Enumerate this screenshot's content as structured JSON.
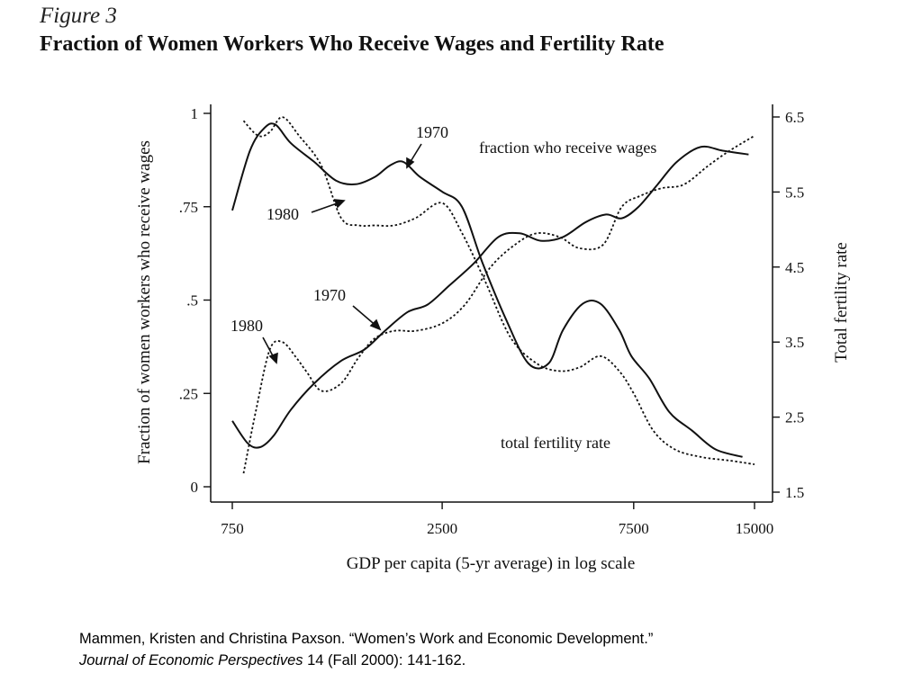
{
  "figure": {
    "label": "Figure 3",
    "title": "Fraction of Women Workers Who Receive Wages and Fertility Rate"
  },
  "citation": {
    "line1": "Mammen, Kristen and Christina Paxson.  “Women’s Work and Economic Development.”",
    "journal": "Journal of Economic Perspectives",
    "line2_rest": " 14 (Fall 2000): 141-162."
  },
  "chart_data": {
    "type": "line",
    "title": "Fraction of Women Workers Who Receive Wages and Fertility Rate",
    "xlabel": "GDP per capita (5-yr average) in log scale",
    "ylabel_left": "Fraction of women workers who receive wages",
    "ylabel_right": "Total fertility rate",
    "x_scale": "log",
    "x_ticks": [
      750,
      2500,
      7500,
      15000
    ],
    "x_tick_labels": [
      "750",
      "2500",
      "7500",
      "15000"
    ],
    "y_left_ticks": [
      0,
      0.25,
      0.5,
      0.75,
      1
    ],
    "y_left_tick_labels": [
      "0",
      ".25",
      ".5",
      ".75",
      "1"
    ],
    "y_right_ticks": [
      1.5,
      2.5,
      3.5,
      4.5,
      5.5,
      6.5
    ],
    "y_right_tick_labels": [
      "1.5",
      "2.5",
      "3.5",
      "4.5",
      "5.5",
      "6.5"
    ],
    "grid": false,
    "annotations": [
      "1970",
      "1980",
      "fraction who receive wages",
      "1970",
      "1980",
      "total fertility rate"
    ],
    "series": [
      {
        "name": "fraction who receive wages, 1970",
        "axis": "left",
        "style": "solid",
        "x": [
          750,
          830,
          900,
          960,
          1050,
          1200,
          1360,
          1520,
          1700,
          1850,
          2000,
          2200,
          2500,
          2800,
          3150,
          3600,
          4100,
          4600,
          5000,
          5600,
          6200,
          6900,
          7400,
          8200,
          9200,
          10500,
          12000,
          14000
        ],
        "y": [
          0.74,
          0.9,
          0.96,
          0.97,
          0.92,
          0.87,
          0.82,
          0.81,
          0.83,
          0.86,
          0.87,
          0.83,
          0.79,
          0.75,
          0.6,
          0.45,
          0.33,
          0.33,
          0.42,
          0.49,
          0.49,
          0.42,
          0.35,
          0.29,
          0.2,
          0.15,
          0.1,
          0.08
        ]
      },
      {
        "name": "fraction who receive wages, 1980",
        "axis": "left",
        "style": "dotted",
        "x": [
          800,
          870,
          930,
          1000,
          1100,
          1250,
          1400,
          1550,
          1700,
          1900,
          2150,
          2500,
          2800,
          3200,
          3700,
          4300,
          4900,
          5500,
          6200,
          6900,
          7500,
          8400,
          9500,
          11000,
          13000,
          15000
        ],
        "y": [
          0.98,
          0.94,
          0.95,
          0.99,
          0.94,
          0.86,
          0.72,
          0.7,
          0.7,
          0.7,
          0.72,
          0.76,
          0.68,
          0.55,
          0.4,
          0.33,
          0.31,
          0.32,
          0.35,
          0.31,
          0.25,
          0.15,
          0.1,
          0.08,
          0.07,
          0.06
        ]
      },
      {
        "name": "total fertility rate, 1970",
        "axis": "right",
        "style": "solid",
        "x": [
          750,
          820,
          880,
          950,
          1050,
          1200,
          1400,
          1600,
          1800,
          2050,
          2300,
          2600,
          3000,
          3450,
          3900,
          4400,
          5000,
          5700,
          6400,
          7000,
          7700,
          8600,
          9600,
          11000,
          12500,
          14500
        ],
        "y": [
          2.45,
          2.15,
          2.1,
          2.25,
          2.6,
          2.95,
          3.25,
          3.4,
          3.65,
          3.9,
          4.0,
          4.25,
          4.55,
          4.9,
          4.95,
          4.85,
          4.9,
          5.1,
          5.2,
          5.15,
          5.3,
          5.6,
          5.9,
          6.1,
          6.05,
          6.0
        ]
      },
      {
        "name": "total fertility rate, 1980",
        "axis": "right",
        "style": "dotted",
        "x": [
          800,
          860,
          930,
          1000,
          1080,
          1150,
          1250,
          1400,
          1550,
          1700,
          1900,
          2150,
          2500,
          2850,
          3300,
          3800,
          4300,
          4900,
          5500,
          6300,
          7000,
          7800,
          8800,
          10000,
          11500,
          13000,
          15000
        ],
        "y": [
          1.75,
          2.6,
          3.4,
          3.5,
          3.3,
          3.1,
          2.85,
          2.95,
          3.3,
          3.55,
          3.65,
          3.65,
          3.75,
          4.0,
          4.5,
          4.8,
          4.95,
          4.9,
          4.75,
          4.8,
          5.3,
          5.45,
          5.55,
          5.6,
          5.85,
          6.05,
          6.25
        ]
      }
    ]
  }
}
